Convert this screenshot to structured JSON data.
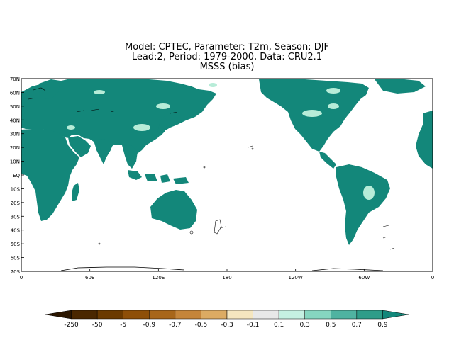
{
  "title": {
    "line1": "Model: CPTEC, Parameter: T2m, Season: DJF",
    "line2": "Lead:2, Period: 1979-2000, Data: CRU2.1",
    "line3": "MSSS (bias)"
  },
  "map": {
    "lat_labels": [
      "70N",
      "60N",
      "50N",
      "40N",
      "30N",
      "20N",
      "10N",
      "EQ",
      "10S",
      "20S",
      "30S",
      "40S",
      "50S",
      "60S",
      "70S"
    ],
    "lon_labels": [
      "0",
      "60E",
      "120E",
      "180",
      "120W",
      "60W",
      "0"
    ],
    "colors": {
      "land_positive": "#13877a",
      "land_light": "#b7ecd8",
      "ocean": "#ffffff",
      "coast": "#000000"
    }
  },
  "legend": {
    "labels": [
      "-250",
      "-50",
      "-5",
      "-0.9",
      "-0.7",
      "-0.5",
      "-0.3",
      "-0.1",
      "0.1",
      "0.3",
      "0.5",
      "0.7",
      "0.9"
    ],
    "colors": [
      "#2b1600",
      "#4a2700",
      "#6b3a00",
      "#8e4f08",
      "#a8661a",
      "#c5853a",
      "#dcab63",
      "#f5e6bf",
      "#e8e8e8",
      "#c5f0e2",
      "#86d6c0",
      "#4fb3a1",
      "#2f9d89",
      "#13877a"
    ]
  }
}
